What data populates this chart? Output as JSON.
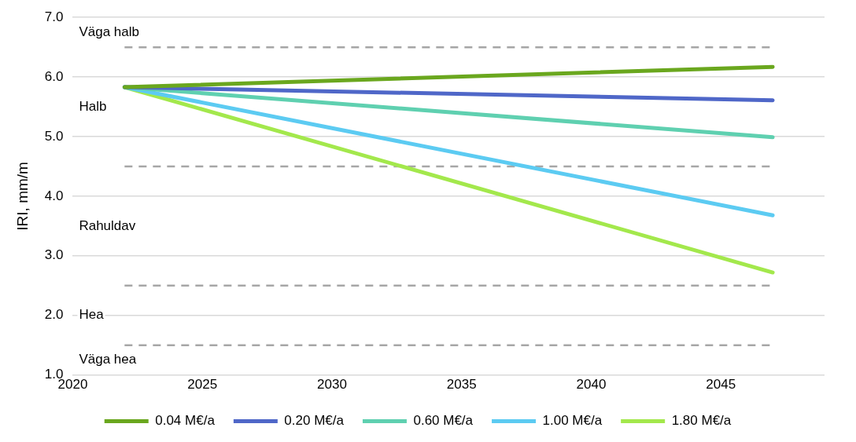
{
  "chart_data": {
    "type": "line",
    "ylabel": "IRI, mm/m",
    "x": [
      2022,
      2047
    ],
    "series": [
      {
        "name": "0.04 M€/a",
        "color": "#6aa71e",
        "values": [
          5.83,
          6.17
        ]
      },
      {
        "name": "0.20 M€/a",
        "color": "#4f67c8",
        "values": [
          5.83,
          5.61
        ]
      },
      {
        "name": "0.60 M€/a",
        "color": "#5fd0b0",
        "values": [
          5.83,
          4.99
        ]
      },
      {
        "name": "1.00 M€/a",
        "color": "#5ccbf2",
        "values": [
          5.83,
          3.68
        ]
      },
      {
        "name": "1.80 M€/a",
        "color": "#a3e84c",
        "values": [
          5.83,
          2.72
        ]
      }
    ],
    "xlim": [
      2020,
      2049
    ],
    "xticks": [
      2020,
      2025,
      2030,
      2035,
      2040,
      2045
    ],
    "ylim": [
      1,
      7
    ],
    "yticks": [
      {
        "value": 1,
        "label": "1.0"
      },
      {
        "value": 2,
        "label": "2.0"
      },
      {
        "value": 3,
        "label": "3.0"
      },
      {
        "value": 4,
        "label": "4.0"
      },
      {
        "value": 5,
        "label": "5.0"
      },
      {
        "value": 6,
        "label": "6.0"
      },
      {
        "value": 7,
        "label": "7.0"
      }
    ],
    "ref_lines": [
      {
        "axis": "y",
        "value": 6.5,
        "color": "#a6a6a6",
        "line_style": "dashed"
      },
      {
        "axis": "y",
        "value": 4.5,
        "color": "#a6a6a6",
        "line_style": "dashed"
      },
      {
        "axis": "y",
        "value": 2.5,
        "color": "#a6a6a6",
        "line_style": "dashed"
      },
      {
        "axis": "y",
        "value": 1.5,
        "color": "#a6a6a6",
        "line_style": "dashed"
      }
    ],
    "annotations": [
      "Väga halb",
      "Halb",
      "Rahuldav",
      "Hea",
      "Väga hea"
    ],
    "grid": "y",
    "legend": "bottom",
    "marker": "none",
    "line_style": "solid"
  }
}
